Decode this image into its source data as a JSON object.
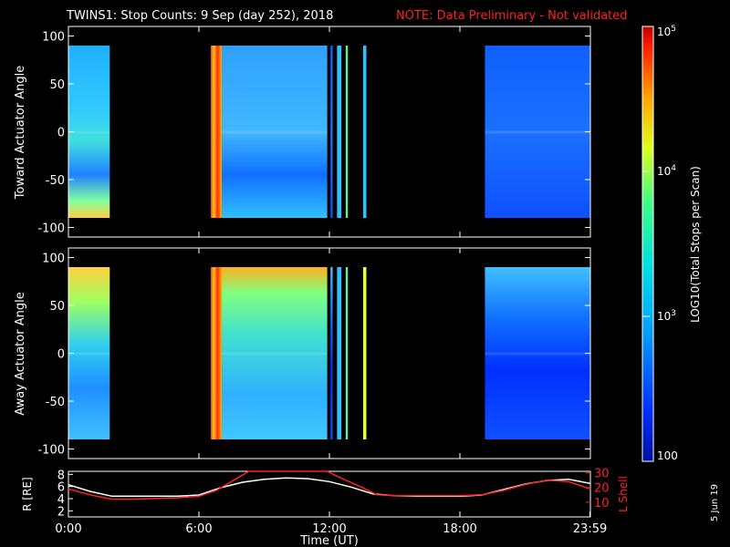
{
  "header": {
    "title": "TWINS1: Stop Counts:  9 Sep (day 252), 2018",
    "note": "NOTE: Data Preliminary - Not validated"
  },
  "footer": {
    "date_stamp": "5 Jun 19"
  },
  "colors": {
    "background": "#000000",
    "note": "#ff2020",
    "r_line": "#ffffff",
    "lshell_line": "#ff2020"
  },
  "chart_data": [
    {
      "type": "heatmap",
      "name": "toward",
      "ylabel": "Toward Actuator Angle",
      "ylim": [
        -110,
        110
      ],
      "yticks": [
        "100",
        "50",
        "0",
        "-50",
        "-100"
      ],
      "ytick_values": [
        100,
        50,
        0,
        -50,
        -100
      ],
      "xlim": [
        0,
        24
      ],
      "angle_range": [
        -90,
        90
      ],
      "data_blocks_ut_hours": [
        {
          "start": 0.0,
          "end": 1.9,
          "level": "cyan-green"
        },
        {
          "start": 6.55,
          "end": 7.05,
          "level": "orange-red"
        },
        {
          "start": 7.05,
          "end": 11.9,
          "level": "cyan-blue"
        },
        {
          "start": 12.05,
          "end": 12.15,
          "level": "blue"
        },
        {
          "start": 12.35,
          "end": 12.55,
          "level": "cyan"
        },
        {
          "start": 12.75,
          "end": 12.85,
          "level": "green"
        },
        {
          "start": 13.55,
          "end": 13.7,
          "level": "cyan"
        },
        {
          "start": 19.15,
          "end": 24.0,
          "level": "blue"
        }
      ]
    },
    {
      "type": "heatmap",
      "name": "away",
      "ylabel": "Away Actuator Angle",
      "ylim": [
        -110,
        110
      ],
      "yticks": [
        "100",
        "50",
        "0",
        "-50",
        "-100"
      ],
      "ytick_values": [
        100,
        50,
        0,
        -50,
        -100
      ],
      "xlim": [
        0,
        24
      ],
      "angle_range": [
        -90,
        90
      ],
      "data_blocks_ut_hours": [
        {
          "start": 0.0,
          "end": 1.9,
          "level": "yellow-cyan"
        },
        {
          "start": 6.55,
          "end": 7.05,
          "level": "orange-red"
        },
        {
          "start": 7.05,
          "end": 11.9,
          "level": "green-cyan"
        },
        {
          "start": 12.05,
          "end": 12.15,
          "level": "blue"
        },
        {
          "start": 12.35,
          "end": 12.55,
          "level": "cyan"
        },
        {
          "start": 12.75,
          "end": 12.85,
          "level": "green"
        },
        {
          "start": 13.55,
          "end": 13.7,
          "level": "yellow"
        },
        {
          "start": 19.15,
          "end": 24.0,
          "level": "blue"
        }
      ]
    },
    {
      "type": "line",
      "name": "orbit",
      "ylabel_left": "R [RE]",
      "ylabel_right": "L Shell",
      "yticks_left": [
        "8",
        "6",
        "4",
        "2"
      ],
      "ytick_values_left": [
        8,
        6,
        4,
        2
      ],
      "yticks_right": [
        "30",
        "20",
        "10"
      ],
      "ytick_values_right": [
        30,
        20,
        10
      ],
      "ylim_left": [
        1,
        8.5
      ],
      "ylim_right": [
        0,
        31
      ],
      "xlim": [
        0,
        24
      ],
      "xlabel": "Time (UT)",
      "xticks": [
        "0:00",
        "6:00",
        "12:00",
        "18:00",
        "23:59"
      ],
      "xtick_values": [
        0,
        6,
        12,
        18,
        23.98
      ],
      "series": [
        {
          "key": "R",
          "color": "#ffffff",
          "x": [
            0,
            1,
            2,
            3,
            4,
            5,
            6,
            7,
            8,
            9,
            10,
            11,
            12,
            13,
            14,
            15,
            16,
            17,
            18,
            19,
            20,
            21,
            22,
            23,
            24
          ],
          "y": [
            6.3,
            5.2,
            4.4,
            4.4,
            4.4,
            4.4,
            4.6,
            5.8,
            6.7,
            7.2,
            7.4,
            7.3,
            6.8,
            5.9,
            4.8,
            4.5,
            4.4,
            4.4,
            4.4,
            4.6,
            5.5,
            6.4,
            7.0,
            7.2,
            6.5
          ]
        },
        {
          "key": "L",
          "color": "#ff2020",
          "x": [
            0,
            1,
            2,
            3,
            4,
            5,
            6,
            6.8,
            7.6,
            8.3,
            11.9,
            12.3,
            13.5,
            14.2,
            15,
            16,
            17,
            18,
            19,
            20,
            21,
            22,
            23,
            24
          ],
          "y": [
            19,
            15,
            12,
            12,
            12.5,
            13,
            14,
            18,
            25,
            31,
            31,
            28,
            20,
            15,
            14.5,
            14.5,
            14.5,
            14.5,
            15,
            18,
            22,
            25,
            24,
            19
          ]
        }
      ]
    }
  ],
  "colorbar": {
    "label": "LOG10(Total Stops per Scan)",
    "tick_values": [
      100,
      1000,
      10000,
      100000
    ],
    "ticks": [
      {
        "label": "100"
      },
      {
        "base": "10",
        "exp": "3"
      },
      {
        "base": "10",
        "exp": "4"
      },
      {
        "base": "10",
        "exp": "5"
      }
    ]
  }
}
